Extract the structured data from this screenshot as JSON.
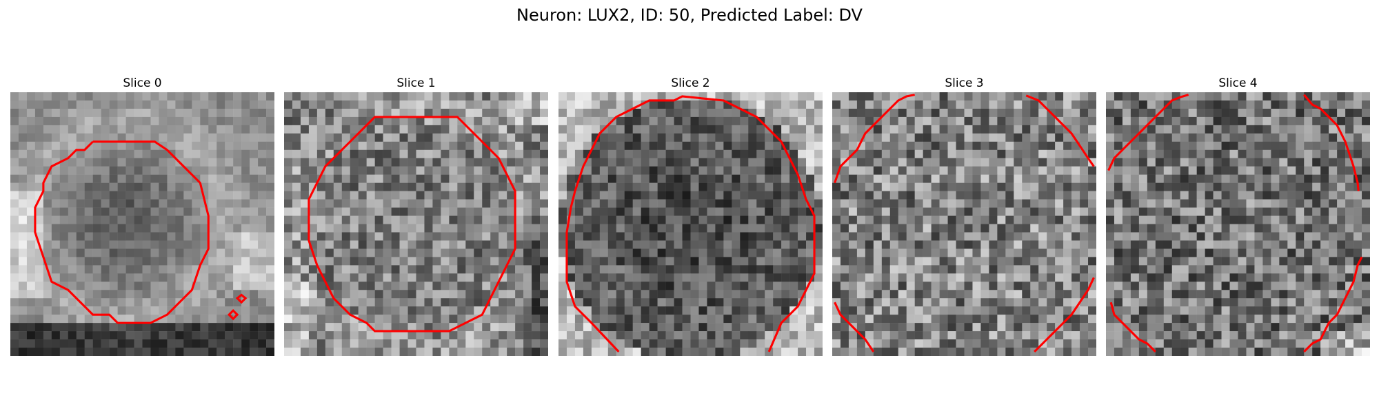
{
  "figure": {
    "title": "Neuron: LUX2, ID: 50, Predicted Label: DV"
  },
  "panels": [
    {
      "title": "Slice 0"
    },
    {
      "title": "Slice 1"
    },
    {
      "title": "Slice 2"
    },
    {
      "title": "Slice 3"
    },
    {
      "title": "Slice 4"
    }
  ],
  "colors": {
    "contour": "#ff0000",
    "background": "#ffffff"
  }
}
